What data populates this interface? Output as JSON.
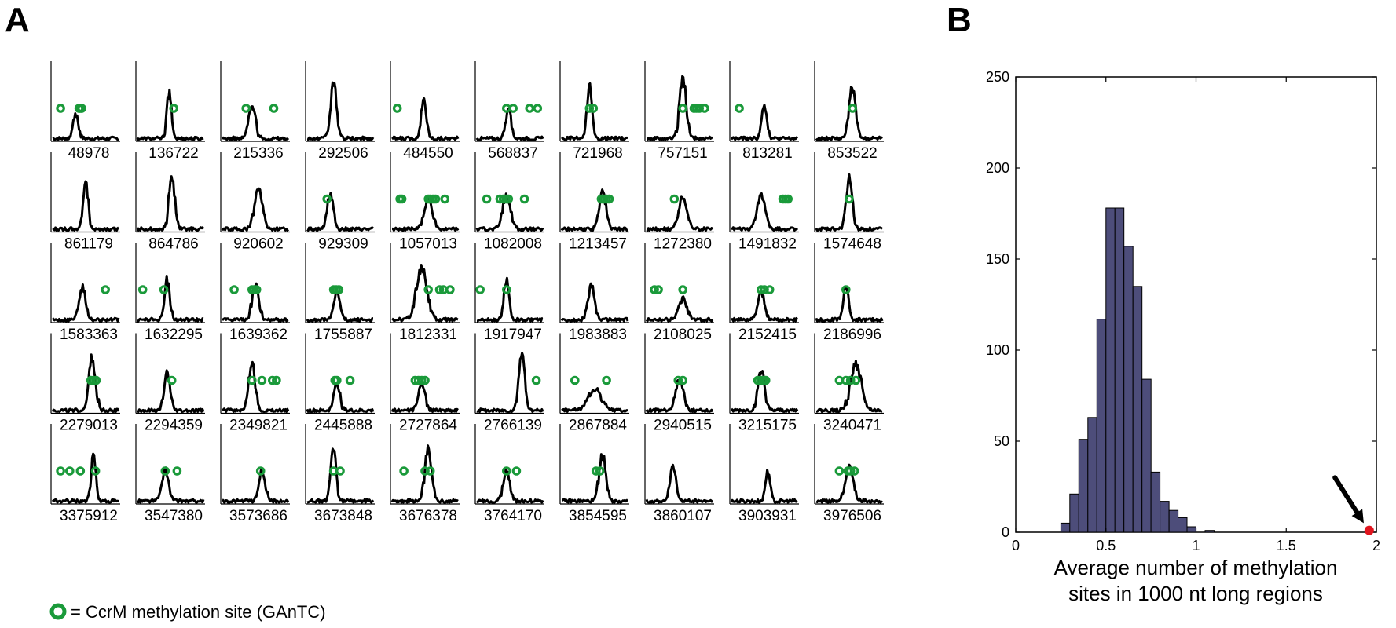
{
  "panels": {
    "a_label": "A",
    "b_label": "B"
  },
  "legend": {
    "text": "= CcrM methylation site (GAnTC)",
    "marker_color": "#1a9a3a"
  },
  "colors": {
    "trace": "#000000",
    "site": "#1a9a3a",
    "bar_fill": "#4d4d7a",
    "highlight": "#e0141e"
  },
  "chart_data": [
    {
      "type": "line",
      "description_of_axes": "small-multiples: normalized coverage profiles around each region; x and y axes unlabeled",
      "grid": false,
      "rows": 5,
      "cols": 10,
      "regions": [
        {
          "label": "48978",
          "peak": 0.35,
          "h": 0.4,
          "w": 0.04,
          "sites": [
            0.12,
            0.4,
            0.42,
            0.44
          ]
        },
        {
          "label": "136722",
          "peak": 0.48,
          "h": 0.75,
          "w": 0.035,
          "sites": [
            0.55
          ]
        },
        {
          "label": "215336",
          "peak": 0.45,
          "h": 0.55,
          "w": 0.05,
          "sites": [
            0.36,
            0.78
          ]
        },
        {
          "label": "292506",
          "peak": 0.4,
          "h": 0.9,
          "w": 0.045,
          "sites": []
        },
        {
          "label": "484550",
          "peak": 0.48,
          "h": 0.62,
          "w": 0.04,
          "sites": [
            0.08
          ]
        },
        {
          "label": "568837",
          "peak": 0.48,
          "h": 0.5,
          "w": 0.04,
          "sites": [
            0.45,
            0.55,
            0.8,
            0.92
          ]
        },
        {
          "label": "721968",
          "peak": 0.42,
          "h": 0.85,
          "w": 0.035,
          "sites": [
            0.42,
            0.48
          ]
        },
        {
          "label": "757151",
          "peak": 0.55,
          "h": 1.0,
          "w": 0.05,
          "sites": [
            0.55,
            0.72,
            0.76,
            0.8,
            0.88
          ]
        },
        {
          "label": "813281",
          "peak": 0.5,
          "h": 0.55,
          "w": 0.04,
          "sites": [
            0.12
          ]
        },
        {
          "label": "853522",
          "peak": 0.55,
          "h": 0.85,
          "w": 0.05,
          "sites": [
            0.55
          ]
        },
        {
          "label": "861179",
          "peak": 0.5,
          "h": 0.75,
          "w": 0.04,
          "sites": []
        },
        {
          "label": "864786",
          "peak": 0.52,
          "h": 0.85,
          "w": 0.045,
          "sites": []
        },
        {
          "label": "920602",
          "peak": 0.55,
          "h": 0.65,
          "w": 0.06,
          "sites": []
        },
        {
          "label": "929309",
          "peak": 0.35,
          "h": 0.6,
          "w": 0.045,
          "sites": [
            0.3
          ]
        },
        {
          "label": "1057013",
          "peak": 0.55,
          "h": 0.5,
          "w": 0.06,
          "sites": [
            0.12,
            0.15,
            0.55,
            0.58,
            0.62,
            0.66,
            0.8
          ]
        },
        {
          "label": "1082008",
          "peak": 0.45,
          "h": 0.55,
          "w": 0.06,
          "sites": [
            0.15,
            0.35,
            0.4,
            0.44,
            0.48,
            0.72
          ]
        },
        {
          "label": "1213457",
          "peak": 0.62,
          "h": 0.65,
          "w": 0.05,
          "sites": [
            0.6,
            0.64,
            0.68,
            0.72
          ]
        },
        {
          "label": "1272380",
          "peak": 0.55,
          "h": 0.55,
          "w": 0.06,
          "sites": [
            0.42
          ]
        },
        {
          "label": "1491832",
          "peak": 0.45,
          "h": 0.55,
          "w": 0.06,
          "sites": [
            0.78,
            0.82,
            0.86
          ]
        },
        {
          "label": "1574648",
          "peak": 0.5,
          "h": 0.85,
          "w": 0.045,
          "sites": [
            0.5
          ]
        },
        {
          "label": "1583363",
          "peak": 0.45,
          "h": 0.55,
          "w": 0.05,
          "sites": [
            0.8
          ]
        },
        {
          "label": "1632295",
          "peak": 0.45,
          "h": 0.65,
          "w": 0.04,
          "sites": [
            0.08,
            0.4
          ]
        },
        {
          "label": "1639362",
          "peak": 0.5,
          "h": 0.55,
          "w": 0.05,
          "sites": [
            0.18,
            0.45,
            0.48,
            0.52
          ]
        },
        {
          "label": "1755887",
          "peak": 0.45,
          "h": 0.45,
          "w": 0.045,
          "sites": [
            0.4,
            0.44,
            0.48
          ]
        },
        {
          "label": "1812331",
          "peak": 0.45,
          "h": 0.85,
          "w": 0.08,
          "sites": [
            0.55,
            0.72,
            0.78,
            0.88
          ]
        },
        {
          "label": "1917947",
          "peak": 0.45,
          "h": 0.65,
          "w": 0.04,
          "sites": [
            0.05,
            0.45
          ]
        },
        {
          "label": "1983883",
          "peak": 0.45,
          "h": 0.55,
          "w": 0.05,
          "sites": []
        },
        {
          "label": "2108025",
          "peak": 0.55,
          "h": 0.35,
          "w": 0.06,
          "sites": [
            0.12,
            0.18,
            0.55
          ]
        },
        {
          "label": "2152415",
          "peak": 0.45,
          "h": 0.45,
          "w": 0.05,
          "sites": [
            0.45,
            0.5,
            0.58
          ]
        },
        {
          "label": "2186996",
          "peak": 0.45,
          "h": 0.55,
          "w": 0.04,
          "sites": [
            0.45
          ]
        },
        {
          "label": "2279013",
          "peak": 0.6,
          "h": 0.85,
          "w": 0.05,
          "sites": [
            0.58,
            0.62,
            0.66
          ]
        },
        {
          "label": "2294359",
          "peak": 0.45,
          "h": 0.6,
          "w": 0.045,
          "sites": [
            0.52
          ]
        },
        {
          "label": "2349821",
          "peak": 0.45,
          "h": 0.75,
          "w": 0.05,
          "sites": [
            0.45,
            0.6,
            0.76,
            0.82
          ]
        },
        {
          "label": "2445888",
          "peak": 0.45,
          "h": 0.45,
          "w": 0.045,
          "sites": [
            0.42,
            0.45,
            0.65
          ]
        },
        {
          "label": "2727864",
          "peak": 0.45,
          "h": 0.45,
          "w": 0.05,
          "sites": [
            0.35,
            0.4,
            0.45,
            0.5
          ]
        },
        {
          "label": "2766139",
          "peak": 0.68,
          "h": 0.95,
          "w": 0.045,
          "sites": [
            0.9
          ]
        },
        {
          "label": "2867884",
          "peak": 0.5,
          "h": 0.35,
          "w": 0.1,
          "sites": [
            0.2,
            0.68
          ]
        },
        {
          "label": "2940515",
          "peak": 0.5,
          "h": 0.5,
          "w": 0.06,
          "sites": [
            0.48,
            0.55
          ]
        },
        {
          "label": "3215175",
          "peak": 0.45,
          "h": 0.65,
          "w": 0.05,
          "sites": [
            0.4,
            0.44,
            0.48,
            0.52
          ]
        },
        {
          "label": "3240471",
          "peak": 0.6,
          "h": 0.75,
          "w": 0.08,
          "sites": [
            0.35,
            0.45,
            0.52,
            0.6
          ]
        },
        {
          "label": "3375912",
          "peak": 0.62,
          "h": 0.75,
          "w": 0.035,
          "sites": [
            0.12,
            0.26,
            0.42,
            0.65
          ]
        },
        {
          "label": "3547380",
          "peak": 0.42,
          "h": 0.5,
          "w": 0.05,
          "sites": [
            0.42,
            0.6
          ]
        },
        {
          "label": "3573686",
          "peak": 0.6,
          "h": 0.5,
          "w": 0.045,
          "sites": [
            0.58
          ]
        },
        {
          "label": "3673848",
          "peak": 0.4,
          "h": 0.85,
          "w": 0.04,
          "sites": [
            0.4,
            0.5
          ]
        },
        {
          "label": "3676378",
          "peak": 0.55,
          "h": 0.85,
          "w": 0.05,
          "sites": [
            0.18,
            0.5,
            0.58
          ]
        },
        {
          "label": "3764170",
          "peak": 0.45,
          "h": 0.5,
          "w": 0.05,
          "sites": [
            0.45,
            0.6
          ]
        },
        {
          "label": "3854595",
          "peak": 0.62,
          "h": 0.75,
          "w": 0.05,
          "sites": [
            0.52,
            0.58
          ]
        },
        {
          "label": "3860107",
          "peak": 0.4,
          "h": 0.55,
          "w": 0.045,
          "sites": []
        },
        {
          "label": "3903931",
          "peak": 0.55,
          "h": 0.5,
          "w": 0.035,
          "sites": []
        },
        {
          "label": "3976506",
          "peak": 0.5,
          "h": 0.55,
          "w": 0.06,
          "sites": [
            0.35,
            0.48,
            0.52,
            0.58
          ]
        }
      ]
    },
    {
      "type": "bar",
      "title": "",
      "xlabel_line1": "Average number of methylation",
      "xlabel_line2": "sites in 1000 nt long regions",
      "ylabel": "",
      "xlim": [
        0,
        2
      ],
      "ylim": [
        0,
        250
      ],
      "xticks": [
        "0",
        "0.5",
        "1",
        "1.5",
        "2"
      ],
      "yticks": [
        "0",
        "50",
        "100",
        "150",
        "200",
        "250"
      ],
      "bin_width": 0.05,
      "bins_left": [
        0.25,
        0.3,
        0.35,
        0.4,
        0.45,
        0.5,
        0.55,
        0.6,
        0.65,
        0.7,
        0.75,
        0.8,
        0.85,
        0.9,
        0.95,
        1.0,
        1.05,
        1.1
      ],
      "counts": [
        5,
        21,
        51,
        63,
        117,
        178,
        178,
        157,
        135,
        84,
        33,
        17,
        12,
        8,
        3,
        0,
        1,
        0
      ],
      "highlight_point": {
        "x": 1.96,
        "y": 1
      },
      "arrow": {
        "from": [
          1.77,
          30
        ],
        "to": [
          1.93,
          5
        ]
      },
      "grid": false
    }
  ]
}
